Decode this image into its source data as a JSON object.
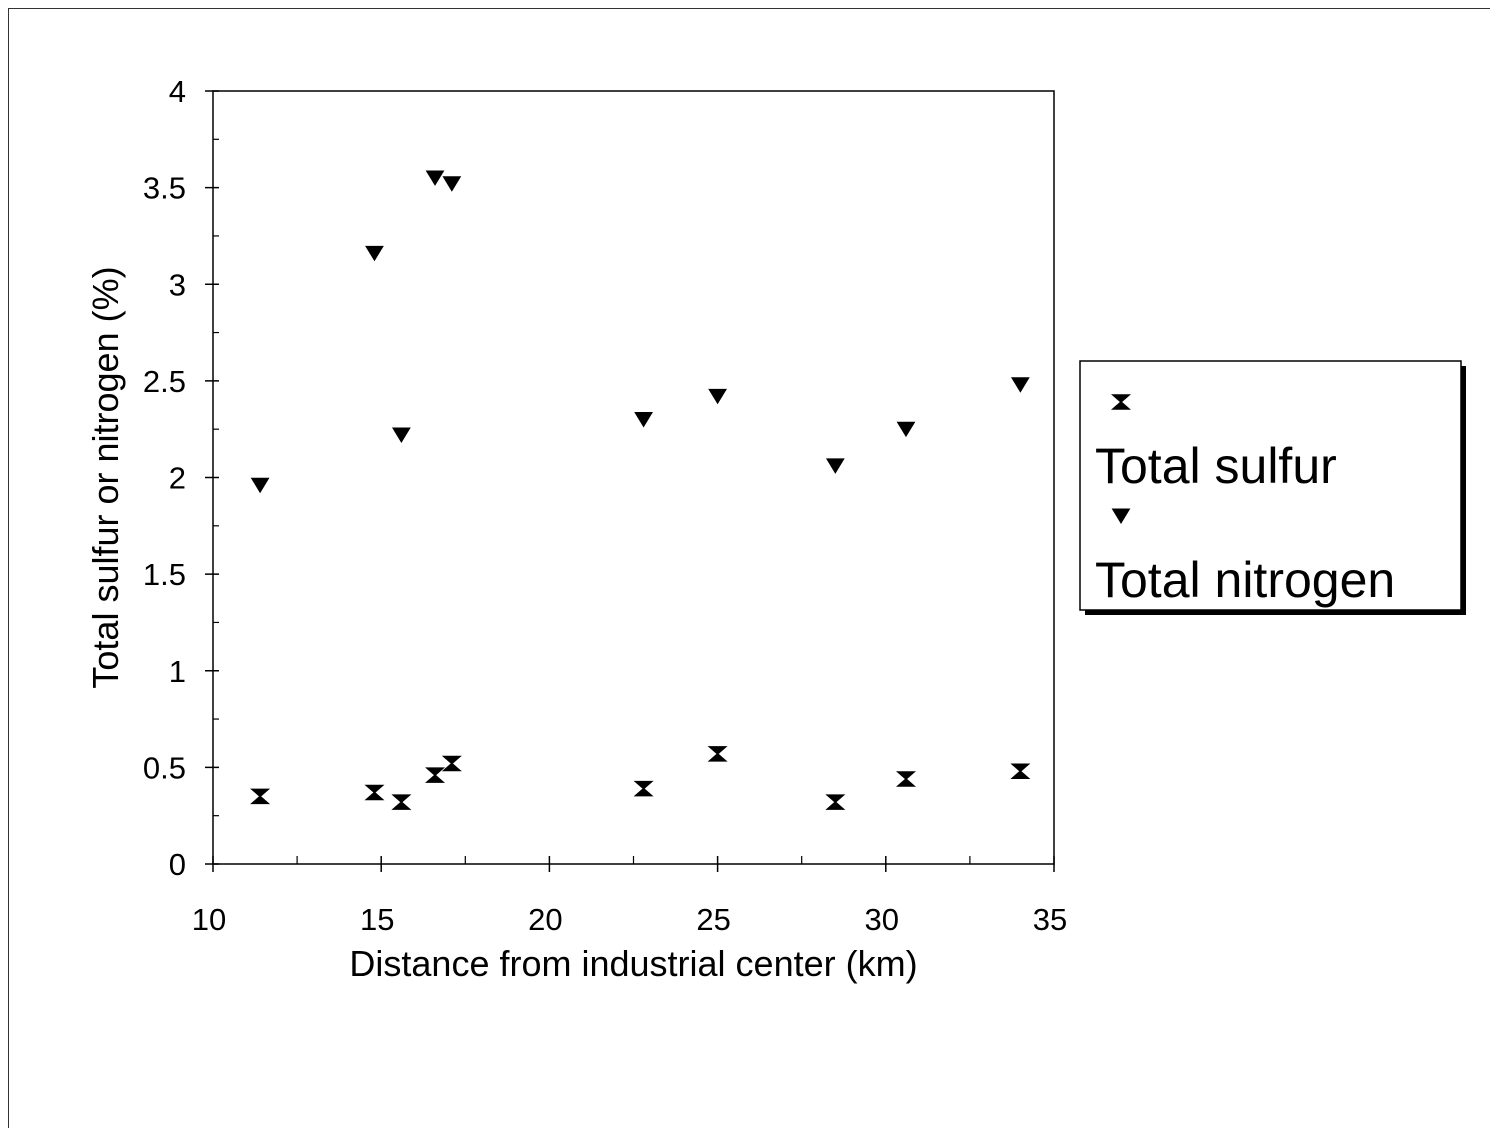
{
  "chart_data": {
    "type": "scatter",
    "title": "",
    "xlabel": "Distance from industrial center (km)",
    "ylabel": "Total sulfur or nitrogen (%)",
    "xlim": [
      10,
      35
    ],
    "ylim": [
      0,
      4
    ],
    "x_ticks": [
      "10",
      "15",
      "20",
      "25",
      "30",
      "35"
    ],
    "y_ticks": [
      "0",
      "0.5",
      "1",
      "1.5",
      "2",
      "2.5",
      "3",
      "3.5",
      "4"
    ],
    "grid": false,
    "legend_position": "right",
    "series": [
      {
        "name": "Total sulfur",
        "marker": "hourglass",
        "color": "#000000",
        "points": [
          {
            "x": 11.4,
            "y": 0.35
          },
          {
            "x": 14.8,
            "y": 0.37
          },
          {
            "x": 15.6,
            "y": 0.32
          },
          {
            "x": 16.6,
            "y": 0.46
          },
          {
            "x": 17.1,
            "y": 0.52
          },
          {
            "x": 22.8,
            "y": 0.39
          },
          {
            "x": 25.0,
            "y": 0.57
          },
          {
            "x": 28.5,
            "y": 0.32
          },
          {
            "x": 30.6,
            "y": 0.44
          },
          {
            "x": 34.0,
            "y": 0.48
          }
        ]
      },
      {
        "name": "Total nitrogen",
        "marker": "triangle-down",
        "color": "#000000",
        "points": [
          {
            "x": 11.4,
            "y": 1.96
          },
          {
            "x": 14.8,
            "y": 3.16
          },
          {
            "x": 15.6,
            "y": 2.22
          },
          {
            "x": 16.6,
            "y": 3.55
          },
          {
            "x": 17.1,
            "y": 3.52
          },
          {
            "x": 22.8,
            "y": 2.3
          },
          {
            "x": 25.0,
            "y": 2.42
          },
          {
            "x": 28.5,
            "y": 2.06
          },
          {
            "x": 30.6,
            "y": 2.25
          },
          {
            "x": 34.0,
            "y": 2.48
          }
        ]
      }
    ]
  }
}
